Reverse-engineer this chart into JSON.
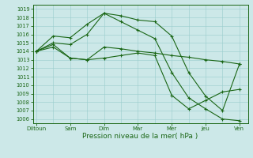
{
  "xlabel": "Pression niveau de la mer( hPa )",
  "x_labels": [
    "Diltoun",
    "Sam",
    "Dim",
    "Mar",
    "Mer",
    "Jeu",
    "Ven"
  ],
  "x_positions": [
    0,
    2,
    4,
    6,
    8,
    10,
    12
  ],
  "ylim_min": 1005.5,
  "ylim_max": 1019.5,
  "yticks": [
    1006,
    1007,
    1008,
    1009,
    1010,
    1011,
    1012,
    1013,
    1014,
    1015,
    1016,
    1017,
    1018,
    1019
  ],
  "lines": [
    {
      "x": [
        0,
        1,
        2,
        3,
        4,
        5,
        6,
        7,
        8,
        9,
        10,
        11,
        12
      ],
      "y": [
        1014.0,
        1015.8,
        1015.6,
        1017.2,
        1018.5,
        1018.2,
        1017.7,
        1017.5,
        1015.8,
        1011.5,
        1008.7,
        1007.0,
        1012.5
      ]
    },
    {
      "x": [
        0,
        1,
        2,
        3,
        4,
        5,
        6,
        7,
        8,
        9,
        10,
        11,
        12
      ],
      "y": [
        1014.0,
        1015.0,
        1014.8,
        1016.0,
        1018.5,
        1017.5,
        1016.5,
        1015.5,
        1011.5,
        1008.5,
        1007.2,
        1006.0,
        1005.8
      ]
    },
    {
      "x": [
        0,
        1,
        2,
        3,
        4,
        5,
        6,
        7,
        8,
        9,
        10,
        11,
        12
      ],
      "y": [
        1014.0,
        1014.8,
        1013.2,
        1013.0,
        1014.5,
        1014.3,
        1014.0,
        1013.8,
        1013.5,
        1013.3,
        1013.0,
        1012.8,
        1012.5
      ]
    },
    {
      "x": [
        0,
        1,
        2,
        3,
        4,
        5,
        6,
        7,
        8,
        9,
        10,
        11,
        12
      ],
      "y": [
        1014.0,
        1014.5,
        1013.2,
        1013.0,
        1013.2,
        1013.5,
        1013.8,
        1013.5,
        1008.8,
        1007.2,
        1008.2,
        1009.2,
        1009.5
      ]
    }
  ],
  "bg_color": "#cce8e8",
  "grid_color": "#99cccc",
  "line_color": "#1a6615",
  "figwidth": 3.2,
  "figheight": 2.0,
  "dpi": 100
}
